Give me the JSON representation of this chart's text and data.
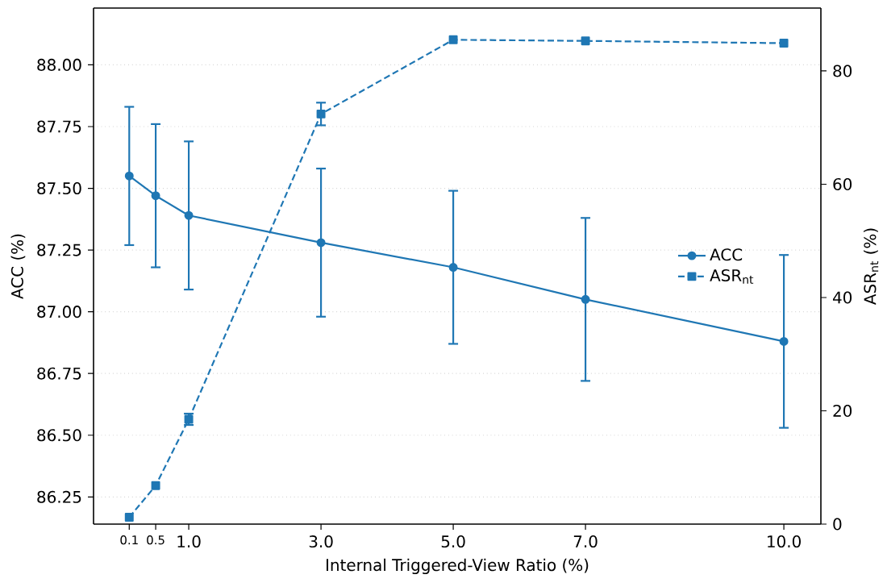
{
  "chart_data": {
    "type": "line",
    "xlabel": "Internal Triggered-View Ratio (%)",
    "ylabel": "ACC (%)",
    "y2label": "ASR$_{nt}$ (%)",
    "x": [
      0.1,
      0.5,
      1.0,
      3.0,
      5.0,
      7.0,
      10.0
    ],
    "xlim": [
      -0.44,
      10.56
    ],
    "xticks": [
      0.1,
      0.5,
      {
        "value": 1,
        "label": "1.0"
      },
      {
        "value": 3,
        "label": "3.0"
      },
      {
        "value": 5,
        "label": "5.0"
      },
      {
        "value": 7,
        "label": "7.0"
      },
      {
        "value": 10,
        "label": "10.0"
      }
    ],
    "ylim": [
      86.14,
      88.23
    ],
    "yticks": [
      {
        "value": 86.25,
        "label": "86.25"
      },
      {
        "value": 86.5,
        "label": "86.50"
      },
      {
        "value": 86.75,
        "label": "86.75"
      },
      {
        "value": 87,
        "label": "87.00"
      },
      {
        "value": 87.25,
        "label": "87.25"
      },
      {
        "value": 87.5,
        "label": "87.50"
      },
      {
        "value": 87.75,
        "label": "87.75"
      },
      {
        "value": 88,
        "label": "88.00"
      }
    ],
    "y2lim": [
      0,
      91.1
    ],
    "y2ticks": [
      0,
      20,
      40,
      60,
      80
    ],
    "grid": "y",
    "legend": "right",
    "series": [
      {
        "name": "ACC",
        "color": "#1f77b4",
        "marker": "circle",
        "line_style": "solid",
        "values": [
          87.55,
          87.47,
          87.39,
          87.28,
          87.18,
          87.05,
          86.88
        ],
        "errors": [
          0.28,
          0.29,
          0.3,
          0.3,
          0.31,
          0.33,
          0.35
        ]
      },
      {
        "name": "ASR$_{nt}$",
        "color": "#1f77b4",
        "axis": "y2",
        "marker": "square",
        "line_style": "dashed",
        "values": [
          1.2,
          6.8,
          18.5,
          72.4,
          85.5,
          85.3,
          84.9
        ],
        "errors": [
          null,
          null,
          1,
          2,
          null,
          null,
          null
        ]
      }
    ]
  }
}
